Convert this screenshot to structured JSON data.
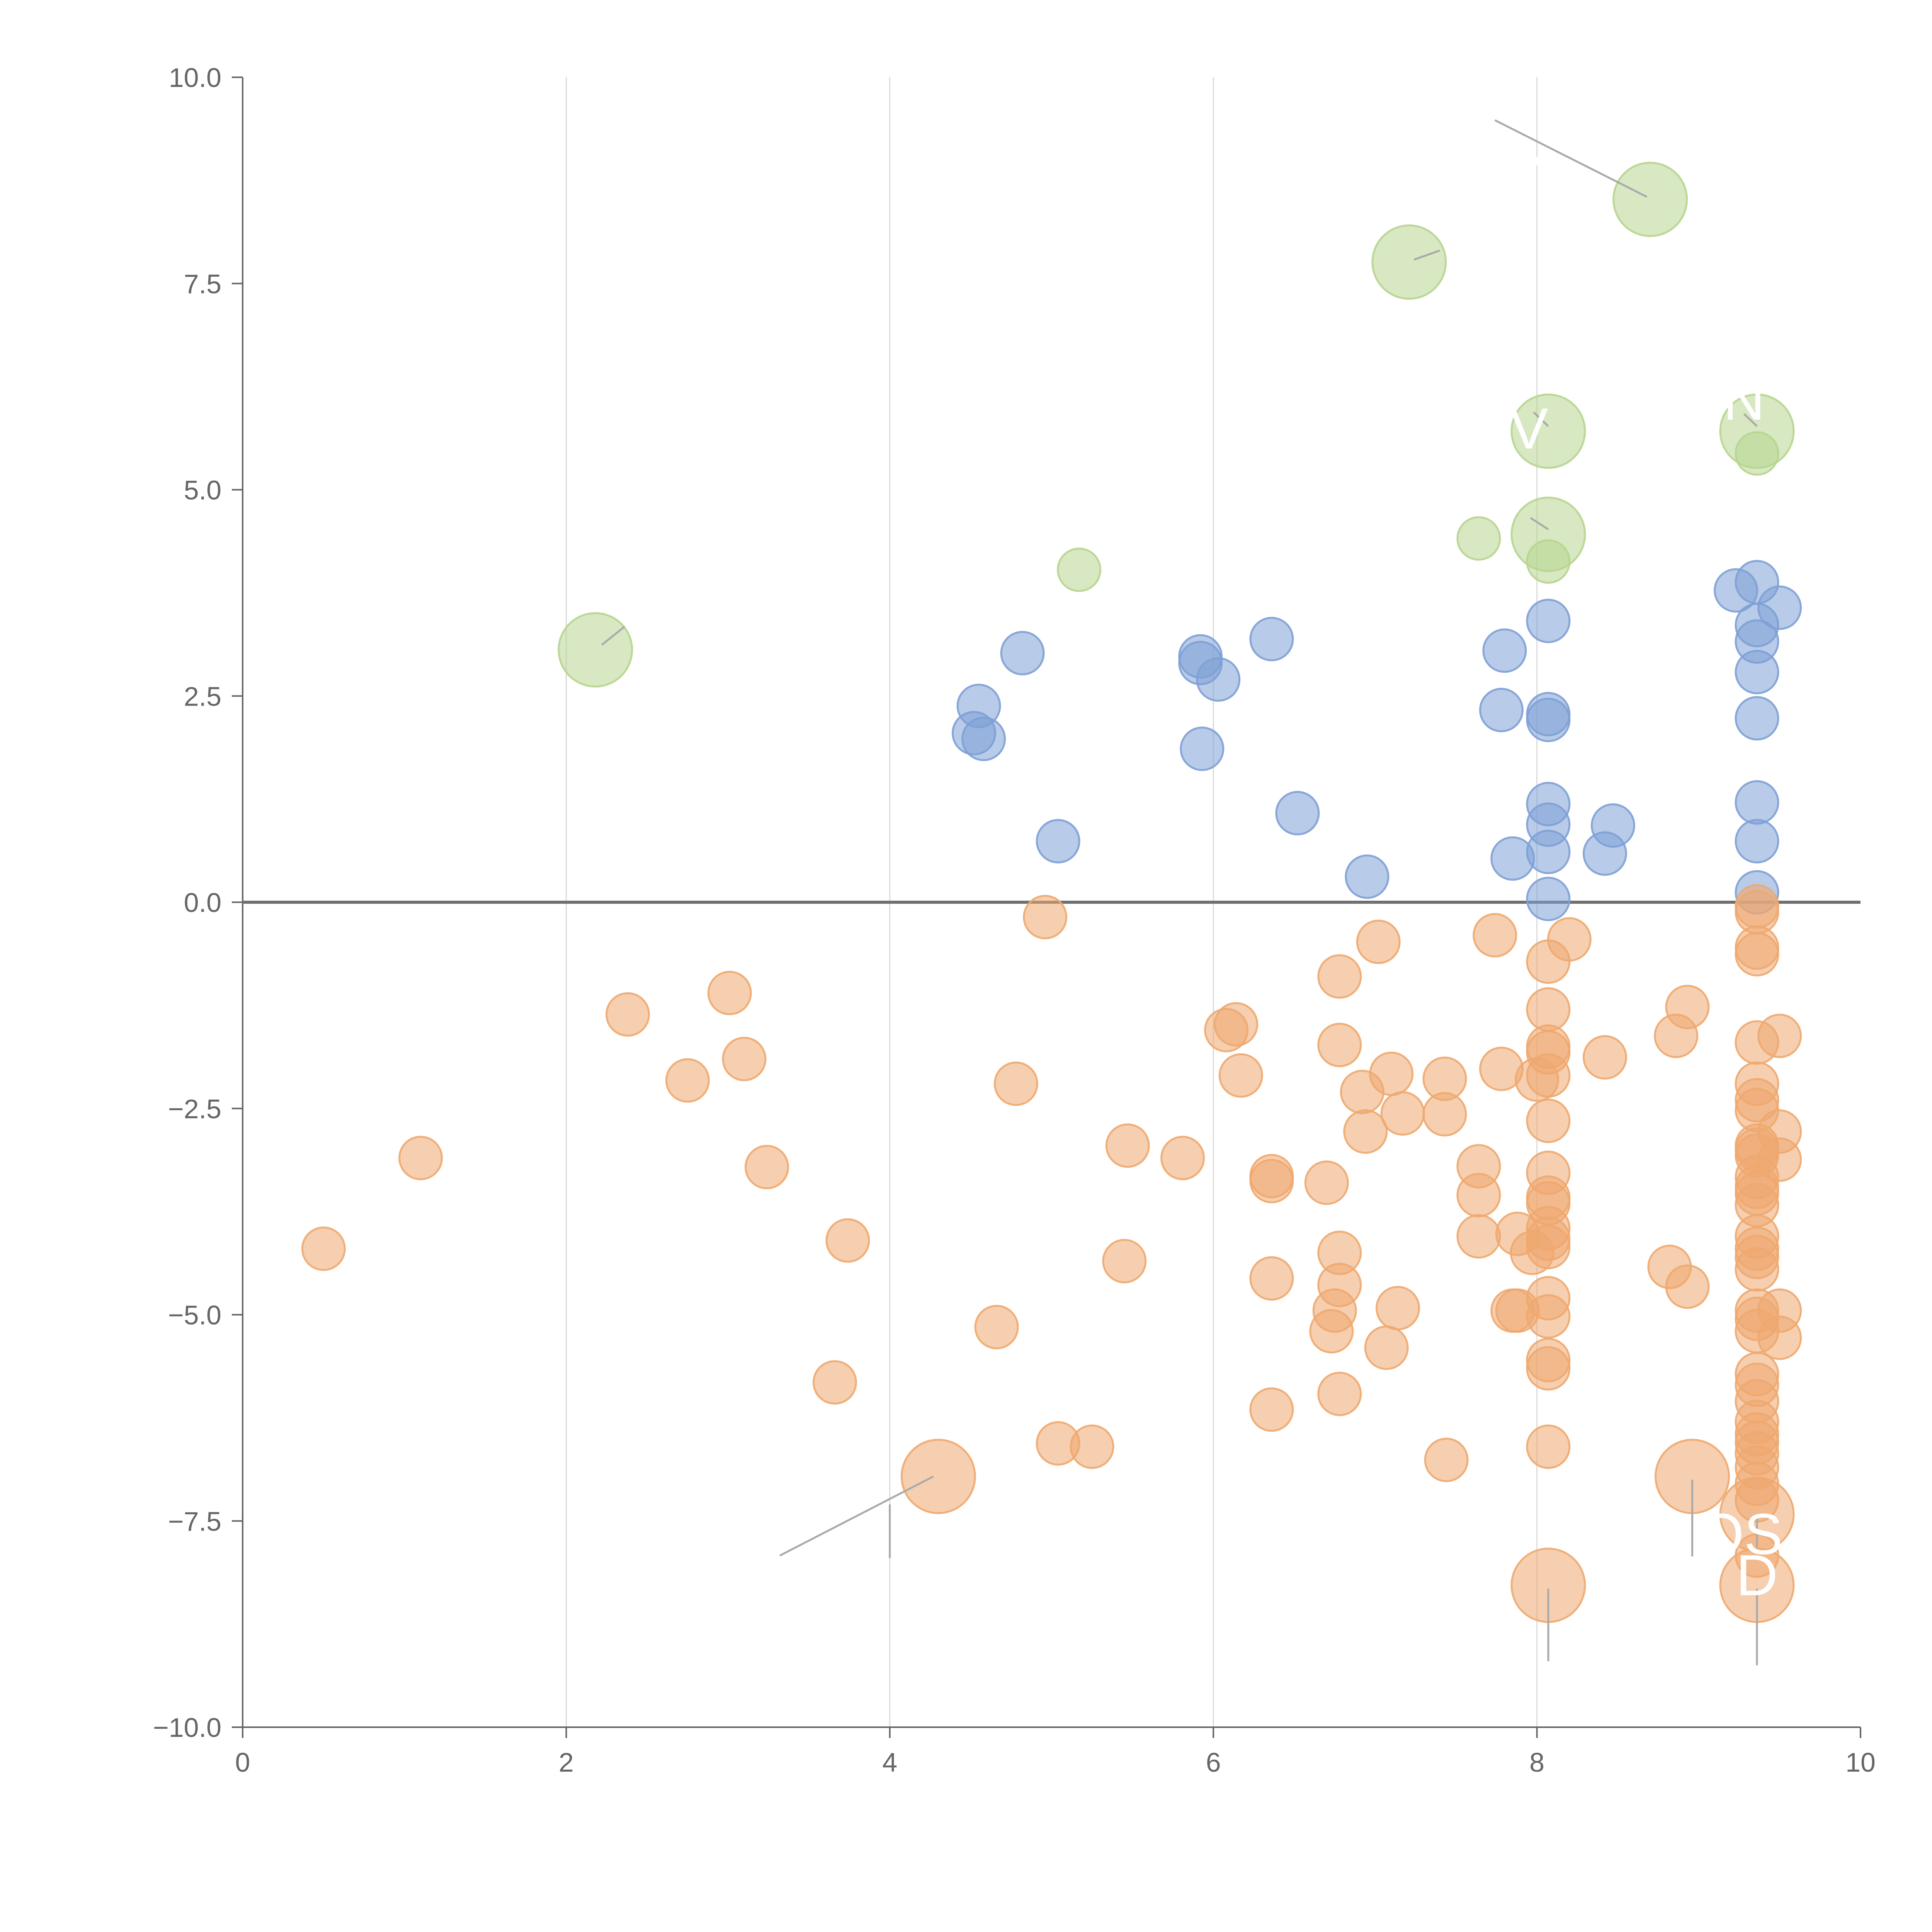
{
  "chart_data": {
    "type": "scatter",
    "title": "",
    "xlabel": "",
    "ylabel": "",
    "xlim": [
      0,
      10
    ],
    "ylim": [
      -10,
      10
    ],
    "grid": "vertical",
    "legend": "none",
    "x_ticks": [
      0,
      2,
      4,
      6,
      8,
      10
    ],
    "x_tick_labels": [
      "0",
      "2",
      "4",
      "6",
      "8",
      "10"
    ],
    "y_ticks": [
      10,
      7.5,
      5,
      2.5,
      0,
      -2.5,
      -5,
      -7.5,
      -10
    ],
    "y_tick_labels": [
      "10.0",
      "7.5",
      "5.0",
      "2.5",
      "0.0",
      "−2.5",
      "−5.0",
      "−7.5",
      "−10.0"
    ],
    "colors": {
      "positive": "#7ea0d6",
      "negative": "#eea86f",
      "highlight": "#b7d58f"
    },
    "series": [
      {
        "name": "positive",
        "points": [
          [
            4.52,
            2.05
          ],
          [
            4.55,
            2.38
          ],
          [
            4.58,
            1.98
          ],
          [
            4.82,
            3.02
          ],
          [
            5.04,
            0.74
          ],
          [
            5.92,
            2.98
          ],
          [
            5.92,
            2.9
          ],
          [
            5.93,
            1.86
          ],
          [
            6.03,
            2.7
          ],
          [
            6.36,
            3.19
          ],
          [
            6.52,
            1.08
          ],
          [
            6.95,
            0.31
          ],
          [
            7.78,
            2.33
          ],
          [
            7.8,
            3.05
          ],
          [
            7.85,
            0.53
          ],
          [
            8.07,
            3.41
          ],
          [
            8.07,
            2.28
          ],
          [
            8.07,
            2.21
          ],
          [
            8.07,
            1.19
          ],
          [
            8.07,
            0.94
          ],
          [
            8.07,
            0.61
          ],
          [
            8.07,
            0.04
          ],
          [
            8.42,
            0.59
          ],
          [
            8.47,
            0.93
          ],
          [
            9.23,
            3.78
          ],
          [
            9.36,
            3.88
          ],
          [
            9.36,
            3.36
          ],
          [
            9.36,
            3.16
          ],
          [
            9.36,
            2.79
          ],
          [
            9.36,
            2.23
          ],
          [
            9.36,
            1.21
          ],
          [
            9.36,
            0.74
          ],
          [
            9.36,
            0.12
          ],
          [
            9.5,
            3.57
          ]
        ]
      },
      {
        "name": "negative",
        "points": [
          [
            0.5,
            -4.2
          ],
          [
            1.1,
            -3.1
          ],
          [
            2.38,
            -1.36
          ],
          [
            2.75,
            -2.16
          ],
          [
            3.01,
            -1.1
          ],
          [
            3.1,
            -1.9
          ],
          [
            3.24,
            -3.21
          ],
          [
            3.66,
            -5.82
          ],
          [
            3.74,
            -4.1
          ],
          [
            4.66,
            -5.15
          ],
          [
            4.78,
            -2.2
          ],
          [
            4.96,
            -0.18
          ],
          [
            5.04,
            -6.56
          ],
          [
            5.25,
            -6.6
          ],
          [
            5.45,
            -4.35
          ],
          [
            5.47,
            -2.95
          ],
          [
            5.81,
            -3.1
          ],
          [
            6.08,
            -1.55
          ],
          [
            6.14,
            -1.48
          ],
          [
            6.17,
            -2.1
          ],
          [
            6.36,
            -3.32
          ],
          [
            6.36,
            -3.38
          ],
          [
            6.36,
            -4.56
          ],
          [
            6.36,
            -6.15
          ],
          [
            6.7,
            -3.4
          ],
          [
            6.73,
            -5.2
          ],
          [
            6.75,
            -4.95
          ],
          [
            6.78,
            -0.9
          ],
          [
            6.78,
            -1.73
          ],
          [
            6.78,
            -4.25
          ],
          [
            6.78,
            -4.64
          ],
          [
            6.78,
            -5.96
          ],
          [
            6.92,
            -2.3
          ],
          [
            6.94,
            -2.78
          ],
          [
            7.02,
            -0.48
          ],
          [
            7.07,
            -5.4
          ],
          [
            7.1,
            -2.08
          ],
          [
            7.14,
            -4.92
          ],
          [
            7.17,
            -2.56
          ],
          [
            7.43,
            -2.14
          ],
          [
            7.43,
            -2.57
          ],
          [
            7.44,
            -6.76
          ],
          [
            7.64,
            -3.2
          ],
          [
            7.64,
            -3.55
          ],
          [
            7.64,
            -4.05
          ],
          [
            7.74,
            -0.4
          ],
          [
            7.78,
            -2.02
          ],
          [
            7.85,
            -4.95
          ],
          [
            7.88,
            -4.95
          ],
          [
            7.88,
            -4.02
          ],
          [
            7.97,
            -4.25
          ],
          [
            8.0,
            -2.15
          ],
          [
            8.07,
            -0.72
          ],
          [
            8.07,
            -1.3
          ],
          [
            8.07,
            -1.75
          ],
          [
            8.07,
            -1.82
          ],
          [
            8.07,
            -2.1
          ],
          [
            8.07,
            -2.65
          ],
          [
            8.07,
            -3.28
          ],
          [
            8.07,
            -3.58
          ],
          [
            8.07,
            -3.65
          ],
          [
            8.07,
            -3.95
          ],
          [
            8.07,
            -4.08
          ],
          [
            8.07,
            -4.18
          ],
          [
            8.07,
            -4.8
          ],
          [
            8.07,
            -5.02
          ],
          [
            8.07,
            -5.55
          ],
          [
            8.07,
            -5.65
          ],
          [
            8.07,
            -6.6
          ],
          [
            8.2,
            -0.45
          ],
          [
            8.42,
            -1.88
          ],
          [
            8.82,
            -4.42
          ],
          [
            8.86,
            -1.62
          ],
          [
            8.93,
            -4.66
          ],
          [
            8.93,
            -1.27
          ],
          [
            9.36,
            -0.05
          ],
          [
            9.36,
            -0.12
          ],
          [
            9.36,
            -0.55
          ],
          [
            9.36,
            -0.63
          ],
          [
            9.36,
            -1.7
          ],
          [
            9.36,
            -2.2
          ],
          [
            9.36,
            -2.4
          ],
          [
            9.36,
            -2.52
          ],
          [
            9.36,
            -2.95
          ],
          [
            9.36,
            -3.0
          ],
          [
            9.36,
            -3.07
          ],
          [
            9.36,
            -3.33
          ],
          [
            9.36,
            -3.45
          ],
          [
            9.36,
            -3.53
          ],
          [
            9.36,
            -3.67
          ],
          [
            9.36,
            -4.05
          ],
          [
            9.36,
            -4.2
          ],
          [
            9.36,
            -4.3
          ],
          [
            9.36,
            -4.45
          ],
          [
            9.36,
            -4.95
          ],
          [
            9.36,
            -5.05
          ],
          [
            9.36,
            -5.2
          ],
          [
            9.36,
            -5.72
          ],
          [
            9.36,
            -5.85
          ],
          [
            9.36,
            -6.05
          ],
          [
            9.36,
            -6.3
          ],
          [
            9.36,
            -6.45
          ],
          [
            9.36,
            -6.55
          ],
          [
            9.36,
            -6.68
          ],
          [
            9.36,
            -6.85
          ],
          [
            9.36,
            -7.05
          ],
          [
            9.36,
            -7.25
          ],
          [
            9.36,
            -7.92
          ],
          [
            9.5,
            -1.62
          ],
          [
            9.5,
            -2.78
          ],
          [
            9.5,
            -3.12
          ],
          [
            9.5,
            -4.95
          ],
          [
            9.5,
            -5.28
          ]
        ]
      },
      {
        "name": "highlight",
        "points": [
          [
            5.17,
            4.03
          ],
          [
            7.64,
            4.41
          ],
          [
            8.07,
            4.13
          ],
          [
            9.36,
            5.44
          ]
        ]
      }
    ],
    "large_markers": [
      {
        "series": "highlight",
        "x": 2.18,
        "y": 3.06
      },
      {
        "series": "highlight",
        "x": 7.21,
        "y": 7.76
      },
      {
        "series": "highlight",
        "x": 8.7,
        "y": 8.52
      },
      {
        "series": "highlight",
        "x": 8.07,
        "y": 5.71
      },
      {
        "series": "highlight",
        "x": 9.36,
        "y": 5.71
      },
      {
        "series": "highlight",
        "x": 8.07,
        "y": 4.46
      },
      {
        "series": "negative",
        "x": 4.3,
        "y": -6.96
      },
      {
        "series": "negative",
        "x": 8.96,
        "y": -6.96
      },
      {
        "series": "negative",
        "x": 9.36,
        "y": -7.42
      },
      {
        "series": "negative",
        "x": 8.07,
        "y": -8.28
      },
      {
        "series": "negative",
        "x": 9.36,
        "y": -8.28
      }
    ],
    "leaders": [
      {
        "x1": 2.22,
        "y1": 3.12,
        "x2": 2.36,
        "y2": 3.34
      },
      {
        "x1": 7.24,
        "y1": 7.79,
        "x2": 7.4,
        "y2": 7.9
      },
      {
        "x1": 8.68,
        "y1": 8.55,
        "x2": 7.74,
        "y2": 9.48
      },
      {
        "x1": 8.07,
        "y1": 5.77,
        "x2": 7.98,
        "y2": 5.94
      },
      {
        "x1": 9.36,
        "y1": 5.77,
        "x2": 9.28,
        "y2": 5.92
      },
      {
        "x1": 8.07,
        "y1": 4.52,
        "x2": 7.96,
        "y2": 4.66
      },
      {
        "x1": 4.27,
        "y1": -6.96,
        "x2": 3.32,
        "y2": -7.92
      },
      {
        "x1": 4.0,
        "y1": -7.95,
        "x2": 4.0,
        "y2": -7.3
      },
      {
        "x1": 8.96,
        "y1": -7.0,
        "x2": 8.96,
        "y2": -7.93
      },
      {
        "x1": 9.36,
        "y1": -7.46,
        "x2": 9.36,
        "y2": -7.82
      },
      {
        "x1": 8.07,
        "y1": -8.32,
        "x2": 8.07,
        "y2": -9.2
      },
      {
        "x1": 9.36,
        "y1": -8.32,
        "x2": 9.36,
        "y2": -9.25
      }
    ],
    "annotations": [
      {
        "text": "•",
        "x": 2.33,
        "y": 3.4
      },
      {
        "text": "•",
        "x": 7.96,
        "y": 8.75
      },
      {
        "text": "N",
        "x": 9.28,
        "y": 5.85
      },
      {
        "text": "V",
        "x": 7.95,
        "y": 5.5
      },
      {
        "text": "OS",
        "x": 9.26,
        "y": -7.9
      },
      {
        "text": "D",
        "x": 9.36,
        "y": -8.4
      }
    ]
  }
}
